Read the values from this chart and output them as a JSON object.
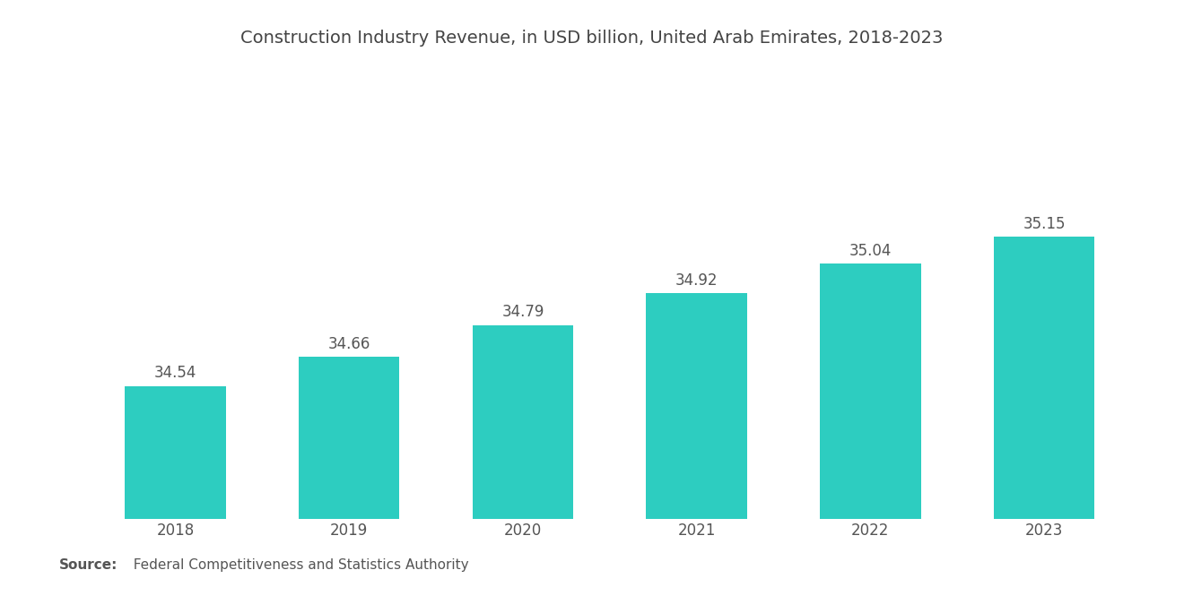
{
  "title": "Construction Industry Revenue, in USD billion, United Arab Emirates, 2018-2023",
  "categories": [
    "2018",
    "2019",
    "2020",
    "2021",
    "2022",
    "2023"
  ],
  "values": [
    34.54,
    34.66,
    34.79,
    34.92,
    35.04,
    35.15
  ],
  "bar_color": "#2DCDC0",
  "bar_width": 0.58,
  "ylim_min": 34.0,
  "ylim_max": 35.8,
  "title_fontsize": 14,
  "tick_fontsize": 12,
  "value_fontsize": 12,
  "source_bold": "Source:",
  "source_text": "  Federal Competitiveness and Statistics Authority",
  "background_color": "#ffffff",
  "text_color": "#555555",
  "title_color": "#444444"
}
